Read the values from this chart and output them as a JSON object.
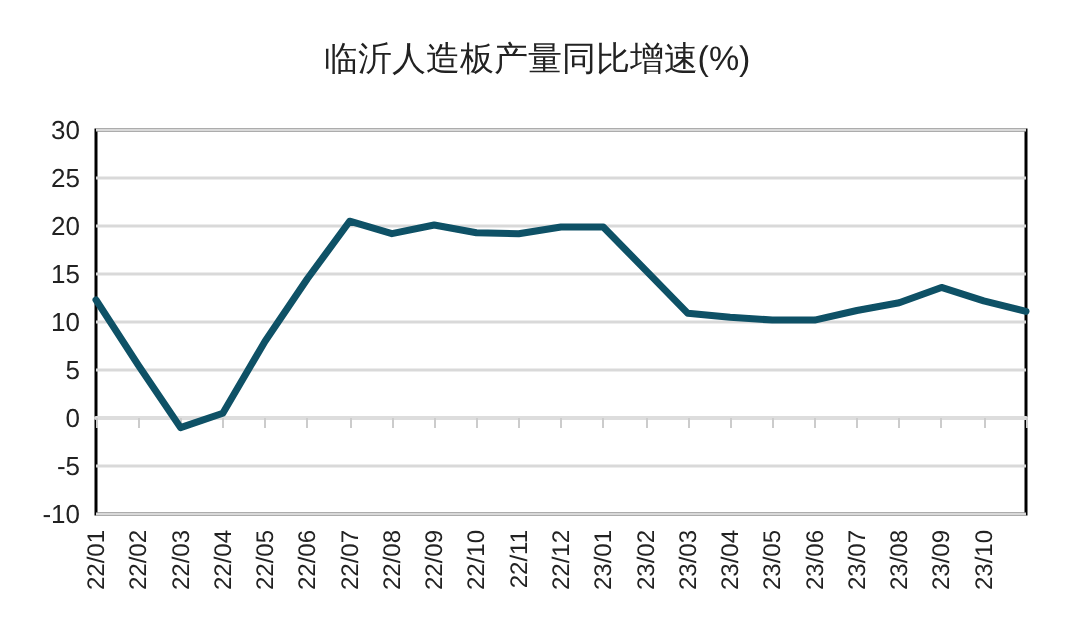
{
  "chart_data": {
    "type": "line",
    "title": "临沂人造板产量同比增速(%)",
    "categories": [
      "22/01",
      "22/02",
      "22/03",
      "22/04",
      "22/05",
      "22/06",
      "22/07",
      "22/08",
      "22/09",
      "22/10",
      "22/11",
      "22/12",
      "23/01",
      "23/02",
      "23/03",
      "23/04",
      "23/05",
      "23/06",
      "23/07",
      "23/08",
      "23/09",
      "23/10",
      null
    ],
    "series": [
      {
        "color": "#0e5166",
        "values": [
          12.3,
          5.5,
          -1,
          0.5,
          8,
          14.5,
          20.5,
          19.2,
          20.1,
          19.3,
          19.2,
          19.9,
          19.9,
          15.4,
          10.9,
          10.5,
          10.2,
          10.2,
          11.2,
          12,
          13.6,
          12.2,
          11.1
        ]
      }
    ],
    "ylim": [
      -10,
      30
    ],
    "yticks": [
      -10,
      -5,
      0,
      5,
      10,
      15,
      20,
      25,
      30
    ],
    "grid": "y",
    "marker": "none",
    "line_style": "solid"
  }
}
